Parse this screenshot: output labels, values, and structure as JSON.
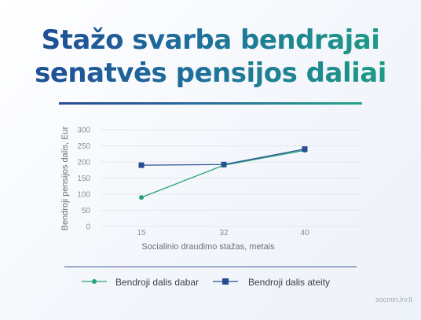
{
  "title": {
    "line1": "Stažo svarba bendrajai",
    "line2": "senatvės pensijos daliai"
  },
  "footer": "socmin.lrv.lt",
  "colors": {
    "series_now": "#27a27a",
    "series_future": "#254f92",
    "grid": "#e4e7ec"
  },
  "chart_data": {
    "type": "line",
    "x": [
      15,
      32,
      40
    ],
    "x_ticks": [
      "15",
      "32",
      "40"
    ],
    "y_ticks": [
      "0",
      "50",
      "100",
      "150",
      "200",
      "250",
      "300"
    ],
    "ylim": [
      0,
      300
    ],
    "xlabel": "Socialinio draudimo stažas, metais",
    "ylabel": "Bendroji pensijos dalis, Eur",
    "grid": true,
    "legend": "bottom",
    "series": [
      {
        "name": "Bendroji dalis dabar",
        "values": [
          90,
          190,
          236
        ],
        "marker": "circle",
        "color": "#27a27a"
      },
      {
        "name": "Bendroji dalis ateity",
        "values": [
          190,
          192,
          240
        ],
        "marker": "square",
        "color": "#254f92"
      }
    ]
  }
}
